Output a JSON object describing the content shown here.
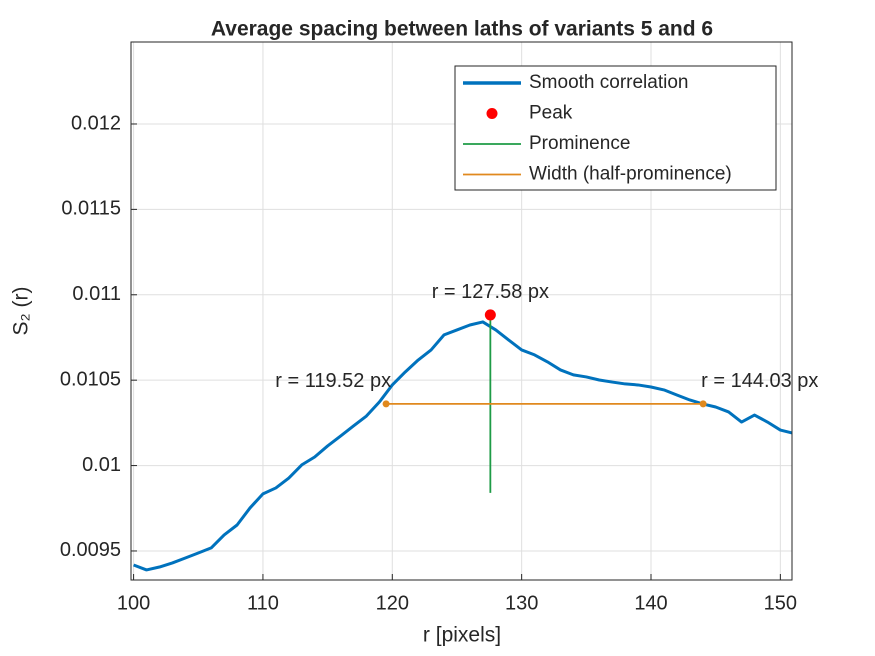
{
  "chart_data": {
    "type": "line",
    "title": "Average spacing between laths of variants 5 and 6",
    "xlabel": "r [pixels]",
    "ylabel": "S₂ (r)",
    "xlim": [
      99.8,
      150.9
    ],
    "ylim": [
      0.00933,
      0.01248
    ],
    "xticks": [
      100,
      110,
      120,
      130,
      140,
      150
    ],
    "yticks": [
      0.0095,
      0.01,
      0.0105,
      0.011,
      0.0115,
      0.012
    ],
    "grid": true,
    "legend": "upper right",
    "series": [
      {
        "name": "Smooth correlation",
        "color": "#0072BD",
        "style": "line",
        "x": [
          100,
          101,
          102,
          103,
          104,
          105,
          106,
          107,
          108,
          109,
          110,
          111,
          112,
          113,
          114,
          115,
          116,
          117,
          118,
          119,
          120,
          121,
          122,
          123,
          124,
          125,
          126,
          127,
          128,
          129,
          130,
          131,
          132,
          133,
          134,
          135,
          136,
          137,
          138,
          139,
          140,
          141,
          142,
          143,
          144,
          145,
          146,
          147,
          148,
          149,
          150,
          150.9
        ],
        "values": [
          0.009418,
          0.009389,
          0.009406,
          0.00943,
          0.009459,
          0.009488,
          0.009518,
          0.009594,
          0.009652,
          0.009752,
          0.009834,
          0.009869,
          0.009927,
          0.010004,
          0.01005,
          0.010115,
          0.010173,
          0.010232,
          0.01029,
          0.010372,
          0.010472,
          0.010548,
          0.010618,
          0.010677,
          0.010765,
          0.010794,
          0.010823,
          0.010841,
          0.010794,
          0.010735,
          0.010677,
          0.010648,
          0.010607,
          0.01056,
          0.010531,
          0.010519,
          0.010501,
          0.010489,
          0.010478,
          0.010472,
          0.01046,
          0.010443,
          0.010413,
          0.010384,
          0.010361,
          0.010343,
          0.010314,
          0.010255,
          0.010296,
          0.010255,
          0.010208,
          0.010191
        ]
      },
      {
        "name": "Peak",
        "color": "#FF0000",
        "style": "marker",
        "x": [
          127.58
        ],
        "values": [
          0.010882
        ]
      },
      {
        "name": "Prominence",
        "color": "#1E9B46",
        "style": "thin",
        "x": [
          127.58,
          127.58
        ],
        "values": [
          0.010882,
          0.00984
        ]
      },
      {
        "name": "Width (half-prominence)",
        "color": "#E0891E",
        "style": "thin-dots",
        "x": [
          119.52,
          144.03
        ],
        "values": [
          0.010361,
          0.010361
        ]
      }
    ],
    "annotations": [
      "r = 127.58 px",
      "r = 119.52 px",
      "r = 144.03 px"
    ]
  }
}
